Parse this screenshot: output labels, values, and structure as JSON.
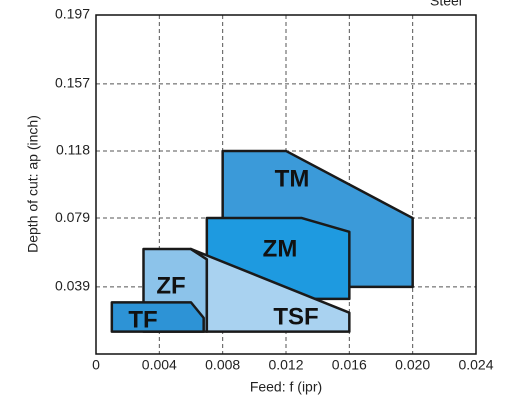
{
  "chart_data": {
    "type": "region",
    "title": "Steel",
    "xlabel": "Feed: f  (ipr)",
    "ylabel": "Depth of cut: ap (inch)",
    "xlim": [
      0,
      0.024
    ],
    "xticks": [
      0,
      0.004,
      0.008,
      0.012,
      0.016,
      {
        "value": 0.02,
        "label": "0.020"
      },
      0.024
    ],
    "ylim": [
      0,
      0.197
    ],
    "yticks": [
      0.039,
      0.079,
      0.118,
      0.157,
      0.197
    ],
    "grid": true,
    "series": [
      {
        "name": "TM",
        "color": "#3b9ad9",
        "x": [
          0.008,
          0.012,
          0.02,
          0.02,
          0.008
        ],
        "y": [
          0.118,
          0.118,
          0.079,
          0.039,
          0.039
        ]
      },
      {
        "name": "ZM",
        "color": "#1e9ae0",
        "x": [
          0.007,
          0.013,
          0.016,
          0.016,
          0.007
        ],
        "y": [
          0.079,
          0.079,
          0.071,
          0.032,
          0.032
        ]
      },
      {
        "name": "ZF",
        "color": "#8cc3ea",
        "x": [
          0.003,
          0.006,
          0.007,
          0.007,
          0.003
        ],
        "y": [
          0.061,
          0.061,
          0.055,
          0.013,
          0.013
        ]
      },
      {
        "name": "TSF",
        "color": "#a9d2f0",
        "x": [
          0.006,
          0.016,
          0.016,
          0.007,
          0.007
        ],
        "y": [
          0.061,
          0.024,
          0.013,
          0.013,
          0.055
        ]
      },
      {
        "name": "TF",
        "color": "#2d93d6",
        "x": [
          0.001,
          0.006,
          0.0068,
          0.0068,
          0.001
        ],
        "y": [
          0.03,
          0.03,
          0.021,
          0.013,
          0.013
        ]
      }
    ]
  }
}
